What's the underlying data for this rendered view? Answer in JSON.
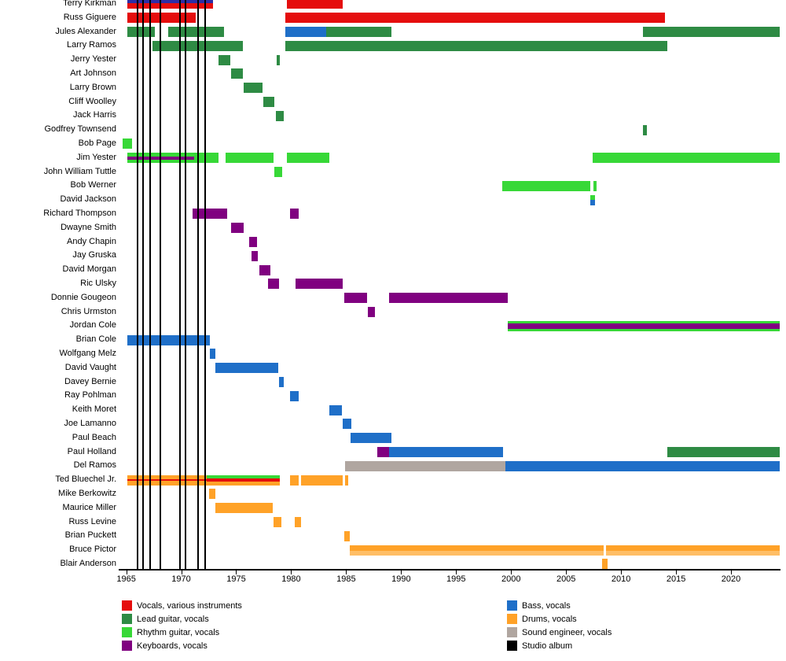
{
  "chart_data": {
    "type": "bar",
    "subtype": "band-members-timeline",
    "title": "",
    "xlabel": "",
    "ylabel": "",
    "x_axis": {
      "min": 1964.6,
      "max": 2024.5,
      "ticks": [
        1965,
        1970,
        1975,
        1980,
        1985,
        1990,
        1995,
        2000,
        2005,
        2010,
        2015,
        2020
      ]
    },
    "colors": {
      "vocals": "#e50d0d",
      "lead": "#2e8b44",
      "rhythm": "#37d837",
      "keys": "#800080",
      "bass": "#1f6fc8",
      "drums": "#ffa228",
      "sound": "#b0a6a0",
      "album": "#000000",
      "navy": "#2d2da6",
      "drums_light": "#ffbe66"
    },
    "album_release_years": [
      1966.0,
      1966.5,
      1967.2,
      1968.1,
      1969.9,
      1970.4,
      1971.5,
      1972.2
    ],
    "categories": [
      "Terry Kirkman",
      "Russ Giguere",
      "Jules Alexander",
      "Larry Ramos",
      "Jerry Yester",
      "Art Johnson",
      "Larry Brown",
      "Cliff Woolley",
      "Jack Harris",
      "Godfrey Townsend",
      "Bob Page",
      "Jim Yester",
      "John William Tuttle",
      "Bob Werner",
      "David Jackson",
      "Richard Thompson",
      "Dwayne Smith",
      "Andy Chapin",
      "Jay Gruska",
      "David Morgan",
      "Ric Ulsky",
      "Donnie Gougeon",
      "Chris Urmston",
      "Jordan Cole",
      "Brian Cole",
      "Wolfgang Melz",
      "David Vaught",
      "Davey Bernie",
      "Ray Pohlman",
      "Keith Moret",
      "Joe Lamanno",
      "Paul Beach",
      "Paul Holland",
      "Del Ramos",
      "Ted Bluechel Jr.",
      "Mike Berkowitz",
      "Maurice Miller",
      "Russ Levine",
      "Brian Puckett",
      "Bruce Pictor",
      "Blair Anderson"
    ],
    "members": [
      {
        "name": "Terry Kirkman",
        "segments": [
          {
            "s": 1965.1,
            "e": 1972.9,
            "stripes": [
              [
                "navy",
                0.8
              ],
              [
                "vocals",
                1.2
              ]
            ]
          },
          {
            "s": 1979.6,
            "e": 1984.7,
            "c": "vocals"
          }
        ]
      },
      {
        "name": "Russ Giguere",
        "segments": [
          {
            "s": 1965.1,
            "e": 1971.3,
            "c": "vocals"
          },
          {
            "s": 1979.5,
            "e": 2014.0,
            "c": "vocals"
          }
        ]
      },
      {
        "name": "Jules Alexander",
        "segments": [
          {
            "s": 1965.1,
            "e": 1967.6,
            "c": "lead"
          },
          {
            "s": 1968.8,
            "e": 1973.9,
            "c": "lead"
          },
          {
            "s": 1979.5,
            "e": 1983.2,
            "c": "bass"
          },
          {
            "s": 1983.2,
            "e": 1989.1,
            "c": "lead"
          },
          {
            "s": 2012.0,
            "e": 2024.4,
            "c": "lead"
          }
        ]
      },
      {
        "name": "Larry Ramos",
        "segments": [
          {
            "s": 1967.4,
            "e": 1975.6,
            "c": "lead"
          },
          {
            "s": 1979.5,
            "e": 2014.2,
            "c": "lead"
          }
        ]
      },
      {
        "name": "Jerry Yester",
        "segments": [
          {
            "s": 1973.4,
            "e": 1974.5,
            "c": "lead"
          },
          {
            "s": 1978.65,
            "e": 1978.95,
            "c": "lead"
          }
        ]
      },
      {
        "name": "Art Johnson",
        "segments": [
          {
            "s": 1974.5,
            "e": 1975.6,
            "c": "lead"
          }
        ]
      },
      {
        "name": "Larry Brown",
        "segments": [
          {
            "s": 1975.7,
            "e": 1977.4,
            "c": "lead"
          }
        ]
      },
      {
        "name": "Cliff Woolley",
        "segments": [
          {
            "s": 1977.5,
            "e": 1978.5,
            "c": "lead"
          }
        ]
      },
      {
        "name": "Jack Harris",
        "segments": [
          {
            "s": 1978.6,
            "e": 1979.3,
            "c": "lead"
          }
        ]
      },
      {
        "name": "Godfrey Townsend",
        "segments": [
          {
            "s": 2012.0,
            "e": 2012.35,
            "c": "lead"
          }
        ]
      },
      {
        "name": "Bob Page",
        "segments": [
          {
            "s": 1964.7,
            "e": 1965.5,
            "c": "rhythm"
          }
        ]
      },
      {
        "name": "Jim Yester",
        "segments": [
          {
            "s": 1965.1,
            "e": 1971.2,
            "stripes": [
              [
                "rhythm",
                1
              ],
              [
                "keys",
                0.8
              ],
              [
                "rhythm",
                1
              ]
            ]
          },
          {
            "s": 1971.2,
            "e": 1973.4,
            "c": "rhythm"
          },
          {
            "s": 1974.0,
            "e": 1978.4,
            "c": "rhythm"
          },
          {
            "s": 1979.6,
            "e": 1983.5,
            "c": "rhythm"
          },
          {
            "s": 2007.4,
            "e": 2024.4,
            "c": "rhythm"
          }
        ]
      },
      {
        "name": "John William Tuttle",
        "segments": [
          {
            "s": 1978.5,
            "e": 1979.2,
            "c": "rhythm"
          }
        ]
      },
      {
        "name": "Bob Werner",
        "segments": [
          {
            "s": 1999.2,
            "e": 2007.2,
            "c": "rhythm"
          },
          {
            "s": 2007.5,
            "e": 2007.8,
            "c": "rhythm"
          }
        ]
      },
      {
        "name": "David Jackson",
        "segments": [
          {
            "s": 2007.2,
            "e": 2007.6,
            "stripes": [
              [
                "rhythm",
                1
              ],
              [
                "bass",
                1
              ]
            ]
          }
        ]
      },
      {
        "name": "Richard Thompson",
        "segments": [
          {
            "s": 1971.0,
            "e": 1974.2,
            "c": "keys"
          },
          {
            "s": 1979.9,
            "e": 1980.7,
            "c": "keys"
          }
        ]
      },
      {
        "name": "Dwayne Smith",
        "segments": [
          {
            "s": 1974.5,
            "e": 1975.7,
            "c": "keys"
          }
        ]
      },
      {
        "name": "Andy Chapin",
        "segments": [
          {
            "s": 1976.2,
            "e": 1976.9,
            "c": "keys"
          }
        ]
      },
      {
        "name": "Jay Gruska",
        "segments": [
          {
            "s": 1976.4,
            "e": 1977.0,
            "c": "keys"
          }
        ]
      },
      {
        "name": "David Morgan",
        "segments": [
          {
            "s": 1977.1,
            "e": 1978.1,
            "c": "keys"
          }
        ]
      },
      {
        "name": "Ric Ulsky",
        "segments": [
          {
            "s": 1977.9,
            "e": 1978.9,
            "c": "keys"
          },
          {
            "s": 1980.4,
            "e": 1984.7,
            "c": "keys"
          }
        ]
      },
      {
        "name": "Donnie Gougeon",
        "segments": [
          {
            "s": 1984.8,
            "e": 1986.9,
            "c": "keys"
          },
          {
            "s": 1988.9,
            "e": 1999.7,
            "c": "keys"
          }
        ]
      },
      {
        "name": "Chris Urmston",
        "segments": [
          {
            "s": 1987.0,
            "e": 1987.6,
            "c": "keys"
          }
        ]
      },
      {
        "name": "Jordan Cole",
        "segments": [
          {
            "s": 1999.7,
            "e": 2024.4,
            "stripes": [
              [
                "rhythm",
                1
              ],
              [
                "keys",
                2
              ],
              [
                "rhythm",
                1
              ]
            ]
          }
        ]
      },
      {
        "name": "Brian Cole",
        "segments": [
          {
            "s": 1965.1,
            "e": 1972.6,
            "c": "bass"
          }
        ]
      },
      {
        "name": "Wolfgang Melz",
        "segments": [
          {
            "s": 1972.6,
            "e": 1973.1,
            "c": "bass"
          }
        ]
      },
      {
        "name": "David Vaught",
        "segments": [
          {
            "s": 1973.1,
            "e": 1978.8,
            "c": "bass"
          }
        ]
      },
      {
        "name": "Davey Bernie",
        "segments": [
          {
            "s": 1978.9,
            "e": 1979.3,
            "c": "bass"
          }
        ]
      },
      {
        "name": "Ray Pohlman",
        "segments": [
          {
            "s": 1979.9,
            "e": 1980.7,
            "c": "bass"
          }
        ]
      },
      {
        "name": "Keith Moret",
        "segments": [
          {
            "s": 1983.5,
            "e": 1984.6,
            "c": "bass"
          }
        ]
      },
      {
        "name": "Joe Lamanno",
        "segments": [
          {
            "s": 1984.7,
            "e": 1985.5,
            "c": "bass"
          }
        ]
      },
      {
        "name": "Paul Beach",
        "segments": [
          {
            "s": 1985.4,
            "e": 1989.1,
            "c": "bass"
          }
        ]
      },
      {
        "name": "Paul Holland",
        "segments": [
          {
            "s": 1987.8,
            "e": 1988.9,
            "c": "keys"
          },
          {
            "s": 1988.9,
            "e": 1999.3,
            "c": "bass"
          },
          {
            "s": 2014.2,
            "e": 2024.4,
            "c": "lead"
          }
        ]
      },
      {
        "name": "Del Ramos",
        "segments": [
          {
            "s": 1984.9,
            "e": 1999.5,
            "c": "sound"
          },
          {
            "s": 1999.5,
            "e": 2024.4,
            "c": "bass"
          }
        ]
      },
      {
        "name": "Ted Bluechel Jr.",
        "segments": [
          {
            "s": 1965.1,
            "e": 1972.3,
            "stripes": [
              [
                "drums",
                1
              ],
              [
                "vocals",
                0.35
              ],
              [
                "drums",
                1
              ]
            ]
          },
          {
            "s": 1972.3,
            "e": 1979.0,
            "stripes": [
              [
                "rhythm",
                1
              ],
              [
                "vocals",
                1
              ],
              [
                "drums",
                1
              ]
            ]
          },
          {
            "s": 1979.9,
            "e": 1980.7,
            "c": "drums"
          },
          {
            "s": 1980.9,
            "e": 1984.7,
            "c": "drums"
          },
          {
            "s": 1984.9,
            "e": 1985.2,
            "c": "drums"
          }
        ]
      },
      {
        "name": "Mike Berkowitz",
        "segments": [
          {
            "s": 1972.5,
            "e": 1973.1,
            "c": "drums"
          }
        ]
      },
      {
        "name": "Maurice Miller",
        "segments": [
          {
            "s": 1973.1,
            "e": 1978.3,
            "c": "drums"
          }
        ]
      },
      {
        "name": "Russ Levine",
        "segments": [
          {
            "s": 1978.4,
            "e": 1979.1,
            "c": "drums"
          },
          {
            "s": 1980.3,
            "e": 1980.9,
            "c": "drums"
          }
        ]
      },
      {
        "name": "Brian Puckett",
        "segments": [
          {
            "s": 1984.8,
            "e": 1985.3,
            "c": "drums"
          }
        ]
      },
      {
        "name": "Bruce Pictor",
        "segments": [
          {
            "s": 1985.3,
            "e": 2008.45,
            "stripes": [
              [
                "drums",
                1.3
              ],
              [
                "drums_light",
                1
              ]
            ]
          },
          {
            "s": 2008.6,
            "e": 2024.4,
            "stripes": [
              [
                "drums",
                1.3
              ],
              [
                "drums_light",
                1
              ]
            ]
          }
        ]
      },
      {
        "name": "Blair Anderson",
        "segments": [
          {
            "s": 2008.3,
            "e": 2008.8,
            "c": "drums"
          }
        ]
      }
    ],
    "legend": {
      "left": [
        {
          "color": "vocals",
          "label": "Vocals, various instruments"
        },
        {
          "color": "lead",
          "label": "Lead guitar, vocals"
        },
        {
          "color": "rhythm",
          "label": "Rhythm guitar, vocals"
        },
        {
          "color": "keys",
          "label": "Keyboards, vocals"
        }
      ],
      "right": [
        {
          "color": "bass",
          "label": "Bass, vocals"
        },
        {
          "color": "drums",
          "label": "Drums, vocals"
        },
        {
          "color": "sound",
          "label": "Sound engineer, vocals"
        },
        {
          "color": "album",
          "label": "Studio album"
        }
      ]
    }
  }
}
